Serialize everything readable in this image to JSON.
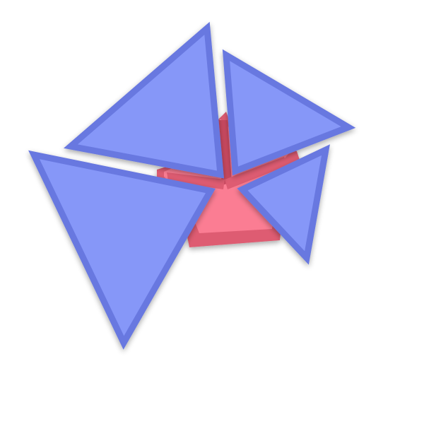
{
  "colors": {
    "background": "#ffffff",
    "piece_fill": "#8697f8",
    "piece_stroke": "#6878e0",
    "target_top": "#fb7d93",
    "target_side": "#de5c72",
    "target_dark": "#c94a60"
  },
  "pieces": [
    {
      "id": "piece-top-left",
      "shape": "triangle"
    },
    {
      "id": "piece-top-right",
      "shape": "triangle"
    },
    {
      "id": "piece-large-left",
      "shape": "triangle"
    },
    {
      "id": "piece-small-right",
      "shape": "triangle"
    }
  ],
  "target": {
    "shape": "triangle-slots"
  }
}
